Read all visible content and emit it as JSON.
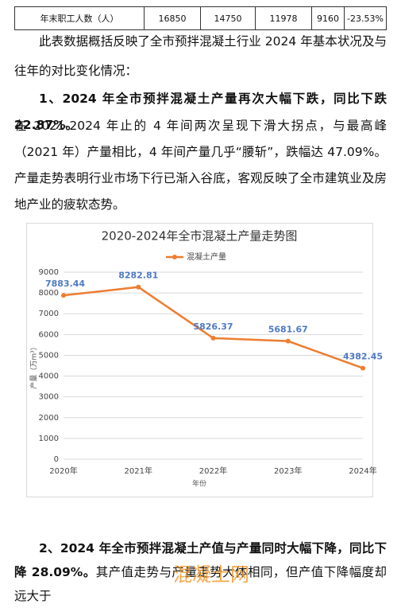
{
  "table": {
    "rows": [
      [
        "年末职工人数（人）",
        16850,
        14750,
        11978,
        9160,
        "-23.53%"
      ]
    ]
  },
  "paragraphs": [
    "此表数据概括反映了全市预拌混凝土行业 2024 年基本状况及与往年的对比变化情况：",
    "1、2024 年全市预拌混凝土产量再次大幅下跌，同比下跌 22.87%。",
    "在 2021-2024 年止的 4 年间两次呈现下滑大拐点，与最高峰（2021 年）产量相比，4 年间产量几乎“腰斩”，跌幅达 47.09%。产量走势表明行业市场下行已渐入谷底，客观反映了全市建筑业及房地产业的疲软态势。"
  ],
  "chart_data": {
    "type": "line",
    "title": "2020-2024年全市混凝土产量走势图",
    "x_label": "年份",
    "y_label": "产量（万m³）",
    "categories": [
      "2020年",
      "2021年",
      "2022年",
      "2023年",
      "2024年"
    ],
    "series": [
      {
        "name": "混凝土产量",
        "color": "#ed7d31",
        "values": [
          7883.44,
          8282.81,
          5826.37,
          5681.67,
          4382.45
        ]
      }
    ],
    "ylim": [
      0,
      9000
    ],
    "yticks": [
      0,
      1000,
      2000,
      3000,
      4000,
      5000,
      6000,
      7000,
      8000,
      9000
    ],
    "grid": true,
    "legend": "top",
    "label_color": "#4f7ac4"
  },
  "section2": {
    "heading": "2、2024 年全市预拌混凝土产值与产量同时大幅下降，同比下降 28.09%。",
    "text": "其产值走势与产量走势大体相同，但产值下降幅度却远大于"
  },
  "watermark": "混凝土网"
}
